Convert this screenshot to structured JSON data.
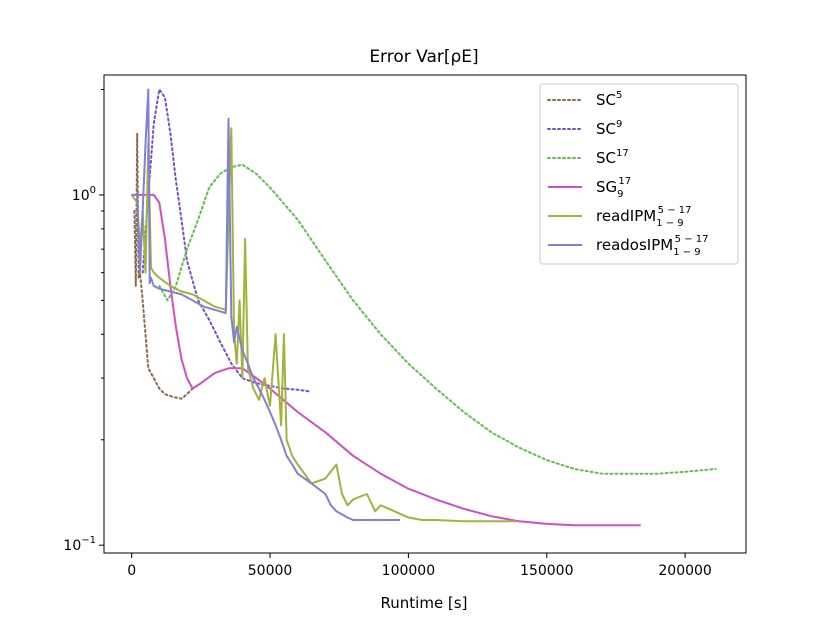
{
  "chart_data": {
    "type": "line",
    "title": "Error Var[ρE]",
    "xlabel": "Runtime [s]",
    "ylabel": "",
    "xlim": [
      -10000,
      222000
    ],
    "ylim": [
      0.095,
      2.2
    ],
    "yscale": "log",
    "grid": false,
    "legend_position": "upper right",
    "x_ticks": [
      {
        "value": 0,
        "label": "0"
      },
      {
        "value": 50000,
        "label": "50000"
      },
      {
        "value": 100000,
        "label": "100000"
      },
      {
        "value": 150000,
        "label": "150000"
      },
      {
        "value": 200000,
        "label": "200000"
      }
    ],
    "y_ticks": [
      {
        "value": 1.0,
        "base": "10",
        "exp": "0"
      },
      {
        "value": 0.1,
        "base": "10",
        "exp": "−1"
      }
    ],
    "series": [
      {
        "name": "SC^5",
        "legend": {
          "base": "SC",
          "sup": "5",
          "sub": ""
        },
        "color": "#8c6a4a",
        "style": "dotted",
        "x": [
          1000,
          1500,
          2000,
          2500,
          3000,
          4000,
          5000,
          6000,
          8000,
          10000,
          12000,
          15000,
          18000,
          20000,
          22000
        ],
        "y": [
          0.9,
          0.55,
          1.5,
          0.58,
          0.6,
          0.5,
          0.4,
          0.32,
          0.3,
          0.28,
          0.27,
          0.265,
          0.262,
          0.27,
          0.28
        ]
      },
      {
        "name": "SC^9",
        "legend": {
          "base": "SC",
          "sup": "9",
          "sub": ""
        },
        "color": "#7a50c8",
        "style": "dotted",
        "x": [
          4000,
          6000,
          8000,
          10000,
          12000,
          14000,
          16000,
          18000,
          20000,
          24000,
          28000,
          32000,
          36000,
          40000,
          45000,
          50000,
          55000,
          60000,
          64000
        ],
        "y": [
          0.6,
          1.0,
          1.6,
          2.0,
          1.9,
          1.5,
          1.1,
          0.85,
          0.65,
          0.5,
          0.44,
          0.38,
          0.33,
          0.3,
          0.29,
          0.285,
          0.28,
          0.278,
          0.275
        ]
      },
      {
        "name": "SC^17",
        "legend": {
          "base": "SC",
          "sup": "17",
          "sub": ""
        },
        "color": "#5ec24a",
        "style": "dotted",
        "x": [
          10000,
          13000,
          16000,
          20000,
          24000,
          28000,
          32000,
          36000,
          40000,
          45000,
          50000,
          60000,
          70000,
          80000,
          90000,
          100000,
          110000,
          120000,
          130000,
          140000,
          150000,
          160000,
          170000,
          180000,
          190000,
          200000,
          211000
        ],
        "y": [
          0.55,
          0.5,
          0.55,
          0.7,
          0.85,
          1.05,
          1.15,
          1.2,
          1.22,
          1.15,
          1.05,
          0.85,
          0.65,
          0.5,
          0.4,
          0.33,
          0.28,
          0.24,
          0.21,
          0.19,
          0.175,
          0.165,
          0.16,
          0.16,
          0.16,
          0.162,
          0.165
        ]
      },
      {
        "name": "SG_9^17",
        "legend": {
          "base": "SG",
          "sup": "17",
          "sub": "9"
        },
        "color": "#d24ec8",
        "style": "solid",
        "x": [
          0,
          4000,
          8000,
          10000,
          12000,
          14000,
          16000,
          18000,
          20000,
          22000,
          25000,
          30000,
          35000,
          40000,
          45000,
          50000,
          60000,
          70000,
          80000,
          90000,
          100000,
          110000,
          120000,
          130000,
          140000,
          150000,
          160000,
          170000,
          184000
        ],
        "y": [
          1.0,
          1.0,
          1.0,
          0.95,
          0.75,
          0.55,
          0.42,
          0.34,
          0.3,
          0.28,
          0.29,
          0.31,
          0.32,
          0.32,
          0.3,
          0.28,
          0.24,
          0.21,
          0.18,
          0.16,
          0.145,
          0.135,
          0.127,
          0.121,
          0.117,
          0.115,
          0.114,
          0.114,
          0.114
        ]
      },
      {
        "name": "readIPM_{1-9}^{5-17}",
        "legend": {
          "base": "readIPM",
          "sup": "5 − 17",
          "sub": "1 − 9"
        },
        "color": "#a2b33c",
        "style": "solid",
        "x": [
          0,
          2000,
          3000,
          4000,
          5000,
          6000,
          7000,
          8000,
          10000,
          14000,
          18000,
          22000,
          26000,
          30000,
          34000,
          36000,
          37000,
          38000,
          39000,
          40000,
          41000,
          42000,
          44000,
          46000,
          48000,
          50000,
          52000,
          54000,
          55000,
          56000,
          58000,
          60000,
          65000,
          70000,
          74000,
          76000,
          78000,
          80000,
          85000,
          88000,
          90000,
          95000,
          100000,
          105000,
          110000,
          120000,
          130000,
          139000
        ],
        "y": [
          1.0,
          0.95,
          0.7,
          0.9,
          0.6,
          1.4,
          0.62,
          0.6,
          0.58,
          0.55,
          0.53,
          0.52,
          0.5,
          0.48,
          0.47,
          1.55,
          0.4,
          0.33,
          0.5,
          0.3,
          0.75,
          0.32,
          0.28,
          0.26,
          0.3,
          0.25,
          0.4,
          0.22,
          0.4,
          0.2,
          0.18,
          0.17,
          0.15,
          0.155,
          0.17,
          0.14,
          0.13,
          0.135,
          0.14,
          0.125,
          0.13,
          0.125,
          0.12,
          0.118,
          0.118,
          0.117,
          0.117,
          0.117
        ]
      },
      {
        "name": "readosIPM_{1-9}^{5-17}",
        "legend": {
          "base": "readosIPM",
          "sup": "5 − 17",
          "sub": "1 − 9"
        },
        "color": "#8080d8",
        "style": "solid",
        "x": [
          0,
          2000,
          3000,
          4000,
          5000,
          6000,
          6500,
          7000,
          8000,
          10000,
          14000,
          18000,
          22000,
          26000,
          30000,
          34000,
          35000,
          36000,
          37000,
          38000,
          40000,
          42000,
          44000,
          46000,
          48000,
          50000,
          52000,
          54000,
          56000,
          58000,
          60000,
          65000,
          70000,
          72000,
          74000,
          78000,
          80000,
          85000,
          90000,
          97000
        ],
        "y": [
          1.0,
          1.0,
          0.6,
          0.9,
          1.4,
          2.0,
          0.56,
          0.58,
          0.55,
          0.54,
          0.53,
          0.52,
          0.5,
          0.48,
          0.47,
          0.46,
          1.65,
          0.45,
          0.38,
          0.42,
          0.36,
          0.33,
          0.3,
          0.28,
          0.26,
          0.24,
          0.22,
          0.2,
          0.18,
          0.17,
          0.16,
          0.15,
          0.14,
          0.13,
          0.125,
          0.12,
          0.118,
          0.118,
          0.118,
          0.118
        ]
      }
    ]
  }
}
